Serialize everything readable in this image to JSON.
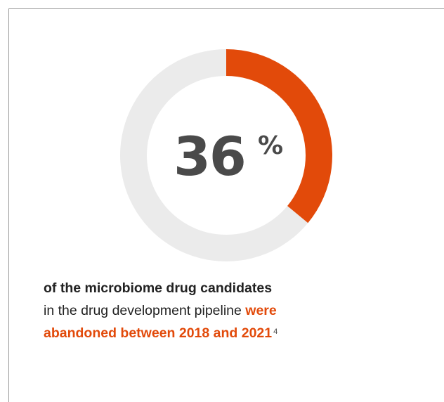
{
  "chart_data": {
    "type": "pie",
    "style": "donut",
    "values": [
      36,
      64
    ],
    "labels": [
      "",
      ""
    ],
    "colors": [
      "#e24a0a",
      "#ebebeb"
    ],
    "center_number": "36",
    "center_unit": "%"
  },
  "caption": {
    "line1_bold": "of the microbiome drug candidates",
    "line2_regular": "in the drug development pipeline",
    "highlight_1": "were",
    "highlight_2": "abandoned between 2018 and 2021",
    "footnote": "4"
  }
}
